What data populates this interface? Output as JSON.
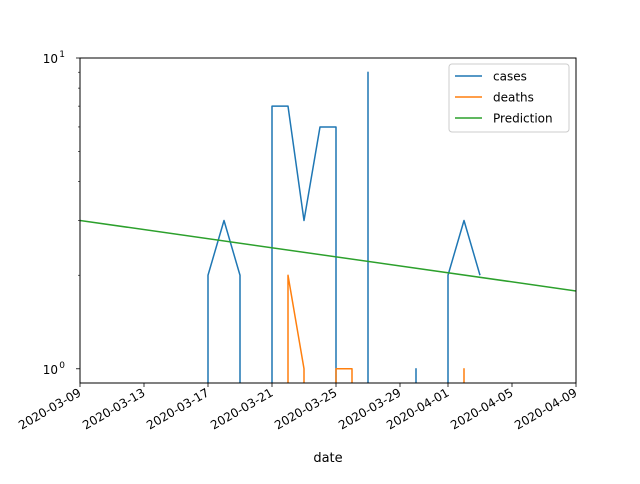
{
  "chart_data": {
    "type": "line",
    "xlabel": "date",
    "ylabel": "",
    "yscale": "log",
    "ylim": [
      0.9,
      10
    ],
    "xlim": [
      "2020-03-09",
      "2020-04-09"
    ],
    "x_ticks": [
      "2020-03-09",
      "2020-03-13",
      "2020-03-17",
      "2020-03-21",
      "2020-03-25",
      "2020-03-29",
      "2020-04-01",
      "2020-04-05",
      "2020-04-09"
    ],
    "y_ticks": [
      {
        "value": 1,
        "label": "10",
        "exp": "0"
      },
      {
        "value": 10,
        "label": "10",
        "exp": "1"
      }
    ],
    "legend_position": "top-right",
    "series": [
      {
        "name": "cases",
        "color": "#1f77b4",
        "points": [
          [
            "2020-03-17",
            0.85
          ],
          [
            "2020-03-17",
            2
          ],
          [
            "2020-03-18",
            3
          ],
          [
            "2020-03-19",
            2
          ],
          [
            "2020-03-19",
            0.85
          ],
          null,
          [
            "2020-03-21",
            0.85
          ],
          [
            "2020-03-21",
            7
          ],
          [
            "2020-03-22",
            7
          ],
          [
            "2020-03-23",
            3
          ],
          [
            "2020-03-24",
            6
          ],
          [
            "2020-03-25",
            6
          ],
          [
            "2020-03-25",
            0.85
          ],
          null,
          [
            "2020-03-27",
            0.85
          ],
          [
            "2020-03-27",
            9
          ],
          [
            "2020-03-27",
            0.85
          ],
          null,
          [
            "2020-03-30",
            0.85
          ],
          [
            "2020-03-30",
            1
          ],
          [
            "2020-03-30",
            0.85
          ],
          null,
          [
            "2020-04-01",
            0.85
          ],
          [
            "2020-04-01",
            2
          ],
          [
            "2020-04-02",
            3
          ],
          [
            "2020-04-03",
            2
          ]
        ]
      },
      {
        "name": "deaths",
        "color": "#ff7f0e",
        "points": [
          [
            "2020-03-22",
            0.85
          ],
          [
            "2020-03-22",
            2
          ],
          [
            "2020-03-23",
            1
          ],
          [
            "2020-03-23",
            0.85
          ],
          null,
          [
            "2020-03-25",
            0.85
          ],
          [
            "2020-03-25",
            1
          ],
          [
            "2020-03-26",
            1
          ],
          [
            "2020-03-26",
            0.85
          ],
          null,
          [
            "2020-04-02",
            0.85
          ],
          [
            "2020-04-02",
            1
          ],
          [
            "2020-04-02",
            0.85
          ]
        ]
      },
      {
        "name": "Prediction",
        "color": "#2ca02c",
        "points": [
          [
            "2020-03-09",
            3.0
          ],
          [
            "2020-04-09",
            1.78
          ]
        ]
      }
    ]
  }
}
